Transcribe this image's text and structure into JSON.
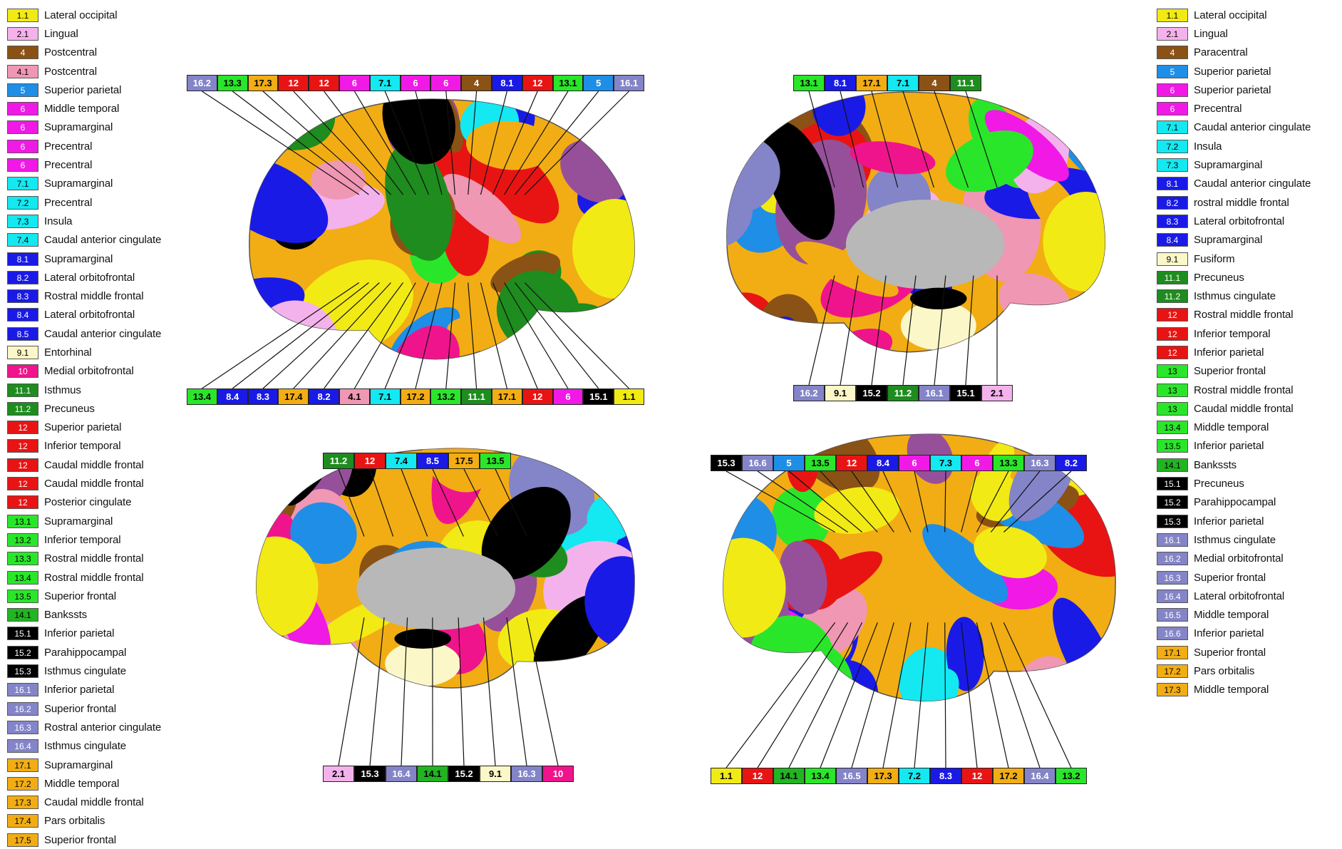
{
  "region_colors": {
    "1": "#f2ea14",
    "2": "#f4b2ec",
    "4": "#8a5214",
    "4.1": "#f097b4",
    "5": "#1f8ee6",
    "6": "#f019e6",
    "7": "#14e8f0",
    "8": "#1a1ae6",
    "9": "#fbf7c8",
    "10": "#f0148c",
    "11": "#1e8c1e",
    "12": "#e81414",
    "13": "#2ae62a",
    "14": "#22b422",
    "15": "#000000",
    "16": "#8484c8",
    "17": "#f2ad14",
    "medial": "#b8b8b8",
    "purple": "#96509a"
  },
  "legend_left": [
    {
      "code": "1.1",
      "name": "Lateral occipital"
    },
    {
      "code": "2.1",
      "name": "Lingual"
    },
    {
      "code": "4",
      "name": "Postcentral"
    },
    {
      "code": "4.1",
      "name": "Postcentral"
    },
    {
      "code": "5",
      "name": "Superior parietal"
    },
    {
      "code": "6",
      "name": "Middle temporal"
    },
    {
      "code": "6",
      "name": "Supramarginal"
    },
    {
      "code": "6",
      "name": "Precentral"
    },
    {
      "code": "6",
      "name": "Precentral"
    },
    {
      "code": "7.1",
      "name": "Supramarginal"
    },
    {
      "code": "7.2",
      "name": "Precentral"
    },
    {
      "code": "7.3",
      "name": "Insula"
    },
    {
      "code": "7.4",
      "name": "Caudal anterior cingulate"
    },
    {
      "code": "8.1",
      "name": "Supramarginal"
    },
    {
      "code": "8.2",
      "name": "Lateral orbitofrontal"
    },
    {
      "code": "8.3",
      "name": "Rostral middle frontal"
    },
    {
      "code": "8.4",
      "name": "Lateral orbitofrontal"
    },
    {
      "code": "8.5",
      "name": "Caudal anterior cingulate"
    },
    {
      "code": "9.1",
      "name": "Entorhinal"
    },
    {
      "code": "10",
      "name": "Medial orbitofrontal"
    },
    {
      "code": "11.1",
      "name": "Isthmus"
    },
    {
      "code": "11.2",
      "name": "Precuneus"
    },
    {
      "code": "12",
      "name": "Superior parietal"
    },
    {
      "code": "12",
      "name": "Inferior temporal"
    },
    {
      "code": "12",
      "name": "Caudal middle frontal"
    },
    {
      "code": "12",
      "name": "Caudal middle frontal"
    },
    {
      "code": "12",
      "name": "Posterior cingulate"
    },
    {
      "code": "13.1",
      "name": "Supramarginal"
    },
    {
      "code": "13.2",
      "name": "Inferior temporal"
    },
    {
      "code": "13.3",
      "name": "Rostral middle frontal"
    },
    {
      "code": "13.4",
      "name": "Rostral middle frontal"
    },
    {
      "code": "13.5",
      "name": "Superior frontal"
    },
    {
      "code": "14.1",
      "name": "Bankssts"
    },
    {
      "code": "15.1",
      "name": "Inferior parietal"
    },
    {
      "code": "15.2",
      "name": "Parahippocampal"
    },
    {
      "code": "15.3",
      "name": "Isthmus cingulate"
    },
    {
      "code": "16.1",
      "name": "Inferior parietal"
    },
    {
      "code": "16.2",
      "name": "Superior frontal"
    },
    {
      "code": "16.3",
      "name": "Rostral anterior cingulate"
    },
    {
      "code": "16.4",
      "name": "Isthmus cingulate"
    },
    {
      "code": "17.1",
      "name": "Supramarginal"
    },
    {
      "code": "17.2",
      "name": "Middle temporal"
    },
    {
      "code": "17.3",
      "name": "Caudal middle frontal"
    },
    {
      "code": "17.4",
      "name": "Pars orbitalis"
    },
    {
      "code": "17.5",
      "name": "Superior frontal"
    }
  ],
  "legend_right": [
    {
      "code": "1.1",
      "name": "Lateral occipital"
    },
    {
      "code": "2.1",
      "name": "Lingual"
    },
    {
      "code": "4",
      "name": "Paracentral"
    },
    {
      "code": "5",
      "name": "Superior parietal"
    },
    {
      "code": "6",
      "name": "Superior parietal"
    },
    {
      "code": "6",
      "name": "Precentral"
    },
    {
      "code": "7.1",
      "name": "Caudal anterior cingulate"
    },
    {
      "code": "7.2",
      "name": "Insula"
    },
    {
      "code": "7.3",
      "name": "Supramarginal"
    },
    {
      "code": "8.1",
      "name": "Caudal anterior cingulate"
    },
    {
      "code": "8.2",
      "name": "rostral middle frontal"
    },
    {
      "code": "8.3",
      "name": "Lateral orbitofrontal"
    },
    {
      "code": "8.4",
      "name": "Supramarginal"
    },
    {
      "code": "9.1",
      "name": "Fusiform"
    },
    {
      "code": "11.1",
      "name": "Precuneus"
    },
    {
      "code": "11.2",
      "name": "Isthmus cingulate"
    },
    {
      "code": "12",
      "name": "Rostral middle frontal"
    },
    {
      "code": "12",
      "name": "Inferior temporal"
    },
    {
      "code": "12",
      "name": "Inferior parietal"
    },
    {
      "code": "13",
      "name": "Superior frontal"
    },
    {
      "code": "13",
      "name": "Rostral middle frontal"
    },
    {
      "code": "13",
      "name": "Caudal middle frontal"
    },
    {
      "code": "13.4",
      "name": "Middle temporal"
    },
    {
      "code": "13.5",
      "name": "Inferior parietal"
    },
    {
      "code": "14.1",
      "name": "Bankssts"
    },
    {
      "code": "15.1",
      "name": "Precuneus"
    },
    {
      "code": "15.2",
      "name": "Parahippocampal"
    },
    {
      "code": "15.3",
      "name": "Inferior parietal"
    },
    {
      "code": "16.1",
      "name": "Isthmus cingulate"
    },
    {
      "code": "16.2",
      "name": "Medial orbitofrontal"
    },
    {
      "code": "16.3",
      "name": "Superior frontal"
    },
    {
      "code": "16.4",
      "name": "Lateral orbitofrontal"
    },
    {
      "code": "16.5",
      "name": "Middle temporal"
    },
    {
      "code": "16.6",
      "name": "Inferior parietal"
    },
    {
      "code": "17.1",
      "name": "Superior frontal"
    },
    {
      "code": "17.2",
      "name": "Pars orbitalis"
    },
    {
      "code": "17.3",
      "name": "Middle temporal"
    }
  ],
  "brain_views": [
    {
      "id": "left-lateral",
      "top_labels": [
        "16.2",
        "13.3",
        "17.3",
        "12",
        "12",
        "6",
        "7.1",
        "6",
        "6",
        "4",
        "8.1",
        "12",
        "13.1",
        "5",
        "16.1"
      ],
      "bottom_labels": [
        "13.4",
        "8.4",
        "8.3",
        "17.4",
        "8.2",
        "4.1",
        "7.1",
        "17.2",
        "13.2",
        "11.1",
        "17.1",
        "12",
        "6",
        "15.1",
        "1.1"
      ]
    },
    {
      "id": "right-medial",
      "top_labels": [
        "13.1",
        "8.1",
        "17.1",
        "7.1",
        "4",
        "11.1"
      ],
      "bottom_labels": [
        "16.2",
        "9.1",
        "15.2",
        "11.2",
        "16.1",
        "15.1",
        "2.1"
      ]
    },
    {
      "id": "left-medial",
      "top_labels": [
        "11.2",
        "12",
        "7.4",
        "8.5",
        "17.5",
        "13.5"
      ],
      "bottom_labels": [
        "2.1",
        "15.3",
        "16.4",
        "14.1",
        "15.2",
        "9.1",
        "16.3",
        "10"
      ]
    },
    {
      "id": "right-lateral",
      "top_labels": [
        "15.3",
        "16.6",
        "5",
        "13.5",
        "12",
        "8.4",
        "6",
        "7.3",
        "6",
        "13.3",
        "16.3",
        "8.2"
      ],
      "bottom_labels": [
        "1.1",
        "12",
        "14.1",
        "13.4",
        "16.5",
        "17.3",
        "7.2",
        "8.3",
        "12",
        "17.2",
        "16.4",
        "13.2"
      ]
    }
  ]
}
